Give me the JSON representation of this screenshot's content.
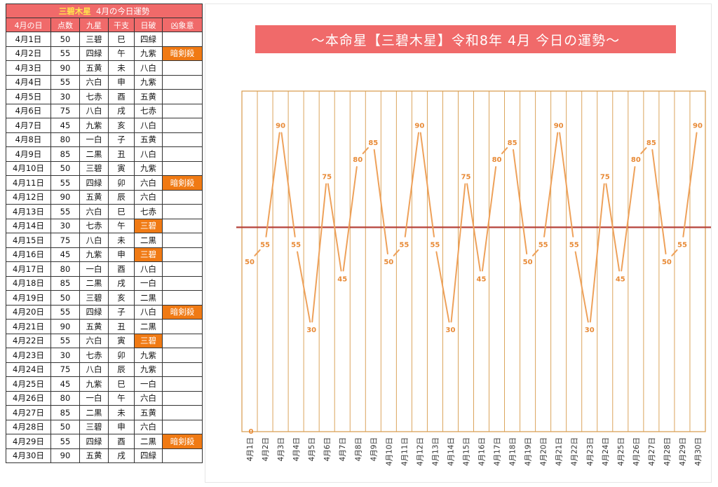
{
  "table": {
    "title_star": "三碧木星",
    "title_rest": "4月の今日運勢",
    "headers": [
      "4月の日",
      "点数",
      "九星",
      "干支",
      "日破",
      "凶象意"
    ],
    "rows": [
      {
        "date": "4月1日",
        "score": "50",
        "kyusei": "三碧",
        "eto": "巳",
        "nippa": "四緑",
        "kyo": "",
        "nippa_hl": false,
        "kyo_hl": false
      },
      {
        "date": "4月2日",
        "score": "55",
        "kyusei": "四緑",
        "eto": "午",
        "nippa": "九紫",
        "kyo": "暗剣殺",
        "nippa_hl": false,
        "kyo_hl": true
      },
      {
        "date": "4月3日",
        "score": "90",
        "kyusei": "五黄",
        "eto": "未",
        "nippa": "八白",
        "kyo": "",
        "nippa_hl": false,
        "kyo_hl": false
      },
      {
        "date": "4月4日",
        "score": "55",
        "kyusei": "六白",
        "eto": "申",
        "nippa": "九紫",
        "kyo": "",
        "nippa_hl": false,
        "kyo_hl": false
      },
      {
        "date": "4月5日",
        "score": "30",
        "kyusei": "七赤",
        "eto": "酉",
        "nippa": "五黄",
        "kyo": "",
        "nippa_hl": false,
        "kyo_hl": false
      },
      {
        "date": "4月6日",
        "score": "75",
        "kyusei": "八白",
        "eto": "戌",
        "nippa": "七赤",
        "kyo": "",
        "nippa_hl": false,
        "kyo_hl": false
      },
      {
        "date": "4月7日",
        "score": "45",
        "kyusei": "九紫",
        "eto": "亥",
        "nippa": "八白",
        "kyo": "",
        "nippa_hl": false,
        "kyo_hl": false
      },
      {
        "date": "4月8日",
        "score": "80",
        "kyusei": "一白",
        "eto": "子",
        "nippa": "五黄",
        "kyo": "",
        "nippa_hl": false,
        "kyo_hl": false
      },
      {
        "date": "4月9日",
        "score": "85",
        "kyusei": "二黒",
        "eto": "丑",
        "nippa": "八白",
        "kyo": "",
        "nippa_hl": false,
        "kyo_hl": false
      },
      {
        "date": "4月10日",
        "score": "50",
        "kyusei": "三碧",
        "eto": "寅",
        "nippa": "九紫",
        "kyo": "",
        "nippa_hl": false,
        "kyo_hl": false
      },
      {
        "date": "4月11日",
        "score": "55",
        "kyusei": "四緑",
        "eto": "卯",
        "nippa": "六白",
        "kyo": "暗剣殺",
        "nippa_hl": false,
        "kyo_hl": true
      },
      {
        "date": "4月12日",
        "score": "90",
        "kyusei": "五黄",
        "eto": "辰",
        "nippa": "六白",
        "kyo": "",
        "nippa_hl": false,
        "kyo_hl": false
      },
      {
        "date": "4月13日",
        "score": "55",
        "kyusei": "六白",
        "eto": "巳",
        "nippa": "七赤",
        "kyo": "",
        "nippa_hl": false,
        "kyo_hl": false
      },
      {
        "date": "4月14日",
        "score": "30",
        "kyusei": "七赤",
        "eto": "午",
        "nippa": "三碧",
        "kyo": "",
        "nippa_hl": true,
        "kyo_hl": false
      },
      {
        "date": "4月15日",
        "score": "75",
        "kyusei": "八白",
        "eto": "未",
        "nippa": "二黒",
        "kyo": "",
        "nippa_hl": false,
        "kyo_hl": false
      },
      {
        "date": "4月16日",
        "score": "45",
        "kyusei": "九紫",
        "eto": "申",
        "nippa": "三碧",
        "kyo": "",
        "nippa_hl": true,
        "kyo_hl": false
      },
      {
        "date": "4月17日",
        "score": "80",
        "kyusei": "一白",
        "eto": "酉",
        "nippa": "八白",
        "kyo": "",
        "nippa_hl": false,
        "kyo_hl": false
      },
      {
        "date": "4月18日",
        "score": "85",
        "kyusei": "二黒",
        "eto": "戌",
        "nippa": "一白",
        "kyo": "",
        "nippa_hl": false,
        "kyo_hl": false
      },
      {
        "date": "4月19日",
        "score": "50",
        "kyusei": "三碧",
        "eto": "亥",
        "nippa": "二黒",
        "kyo": "",
        "nippa_hl": false,
        "kyo_hl": false
      },
      {
        "date": "4月20日",
        "score": "55",
        "kyusei": "四緑",
        "eto": "子",
        "nippa": "八白",
        "kyo": "暗剣殺",
        "nippa_hl": false,
        "kyo_hl": true
      },
      {
        "date": "4月21日",
        "score": "90",
        "kyusei": "五黄",
        "eto": "丑",
        "nippa": "二黒",
        "kyo": "",
        "nippa_hl": false,
        "kyo_hl": false
      },
      {
        "date": "4月22日",
        "score": "55",
        "kyusei": "六白",
        "eto": "寅",
        "nippa": "三碧",
        "kyo": "",
        "nippa_hl": true,
        "kyo_hl": false
      },
      {
        "date": "4月23日",
        "score": "30",
        "kyusei": "七赤",
        "eto": "卯",
        "nippa": "九紫",
        "kyo": "",
        "nippa_hl": false,
        "kyo_hl": false
      },
      {
        "date": "4月24日",
        "score": "75",
        "kyusei": "八白",
        "eto": "辰",
        "nippa": "九紫",
        "kyo": "",
        "nippa_hl": false,
        "kyo_hl": false
      },
      {
        "date": "4月25日",
        "score": "45",
        "kyusei": "九紫",
        "eto": "巳",
        "nippa": "一白",
        "kyo": "",
        "nippa_hl": false,
        "kyo_hl": false
      },
      {
        "date": "4月26日",
        "score": "80",
        "kyusei": "一白",
        "eto": "午",
        "nippa": "六白",
        "kyo": "",
        "nippa_hl": false,
        "kyo_hl": false
      },
      {
        "date": "4月27日",
        "score": "85",
        "kyusei": "二黒",
        "eto": "未",
        "nippa": "五黄",
        "kyo": "",
        "nippa_hl": false,
        "kyo_hl": false
      },
      {
        "date": "4月28日",
        "score": "50",
        "kyusei": "三碧",
        "eto": "申",
        "nippa": "六白",
        "kyo": "",
        "nippa_hl": false,
        "kyo_hl": false
      },
      {
        "date": "4月29日",
        "score": "55",
        "kyusei": "四緑",
        "eto": "酉",
        "nippa": "二黒",
        "kyo": "暗剣殺",
        "nippa_hl": false,
        "kyo_hl": true
      },
      {
        "date": "4月30日",
        "score": "90",
        "kyusei": "五黄",
        "eto": "戌",
        "nippa": "四緑",
        "kyo": "",
        "nippa_hl": false,
        "kyo_hl": false
      }
    ]
  },
  "chart_data": {
    "type": "line",
    "title": "～本命星【三碧木星】令和8年 4月 今日の運勢～",
    "categories": [
      "4月1日",
      "4月2日",
      "4月3日",
      "4月4日",
      "4月5日",
      "4月6日",
      "4月7日",
      "4月8日",
      "4月9日",
      "4月10日",
      "4月11日",
      "4月12日",
      "4月13日",
      "4月14日",
      "4月15日",
      "4月16日",
      "4月17日",
      "4月18日",
      "4月19日",
      "4月20日",
      "4月21日",
      "4月22日",
      "4月23日",
      "4月24日",
      "4月25日",
      "4月26日",
      "4月27日",
      "4月28日",
      "4月29日",
      "4月30日"
    ],
    "values": [
      50,
      55,
      90,
      55,
      30,
      75,
      45,
      80,
      85,
      50,
      55,
      90,
      55,
      30,
      75,
      45,
      80,
      85,
      50,
      55,
      90,
      55,
      30,
      75,
      45,
      80,
      85,
      50,
      55,
      90
    ],
    "reference_line": 60,
    "ylim": [
      0,
      100
    ],
    "y_tick_shown": "0",
    "grid": "vertical",
    "line_color": "#eea15a",
    "label_color": "#e88a36",
    "reference_color": "#b5423a",
    "frame_color": "#d79a4a"
  }
}
